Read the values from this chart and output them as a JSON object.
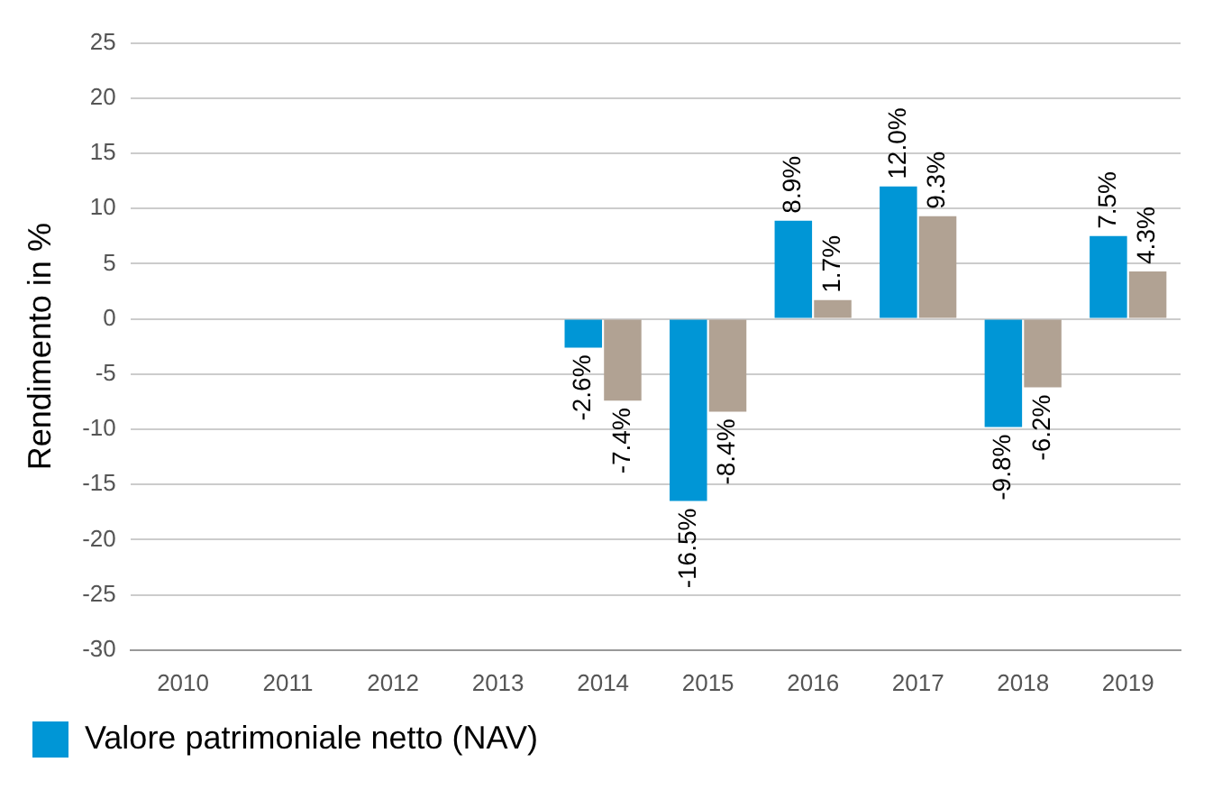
{
  "chart_data": {
    "type": "bar",
    "ylabel": "Rendimento in %",
    "categories": [
      "2010",
      "2011",
      "2012",
      "2013",
      "2014",
      "2015",
      "2016",
      "2017",
      "2018",
      "2019"
    ],
    "series": [
      {
        "name": "Valore patrimoniale netto (NAV)",
        "color": "#0096d6",
        "values": [
          null,
          null,
          null,
          null,
          -2.6,
          -16.5,
          8.9,
          12.0,
          -9.8,
          7.5
        ],
        "value_labels": [
          null,
          null,
          null,
          null,
          "-2.6%",
          "-16.5%",
          "8.9%",
          "12.0%",
          "-9.8%",
          "7.5%"
        ]
      },
      {
        "color": "#b1a293",
        "values": [
          null,
          null,
          null,
          null,
          -7.4,
          -8.4,
          1.7,
          9.3,
          -6.2,
          4.3
        ],
        "value_labels": [
          null,
          null,
          null,
          null,
          "-7.4%",
          "-8.4%",
          "1.7%",
          "9.3%",
          "-6.2%",
          "4.3%"
        ]
      }
    ],
    "ylim": [
      -30,
      25
    ],
    "yticks": [
      -30,
      -25,
      -20,
      -15,
      -10,
      -5,
      0,
      5,
      10,
      15,
      20,
      25
    ],
    "grid": "y",
    "legend": "bottom left"
  }
}
